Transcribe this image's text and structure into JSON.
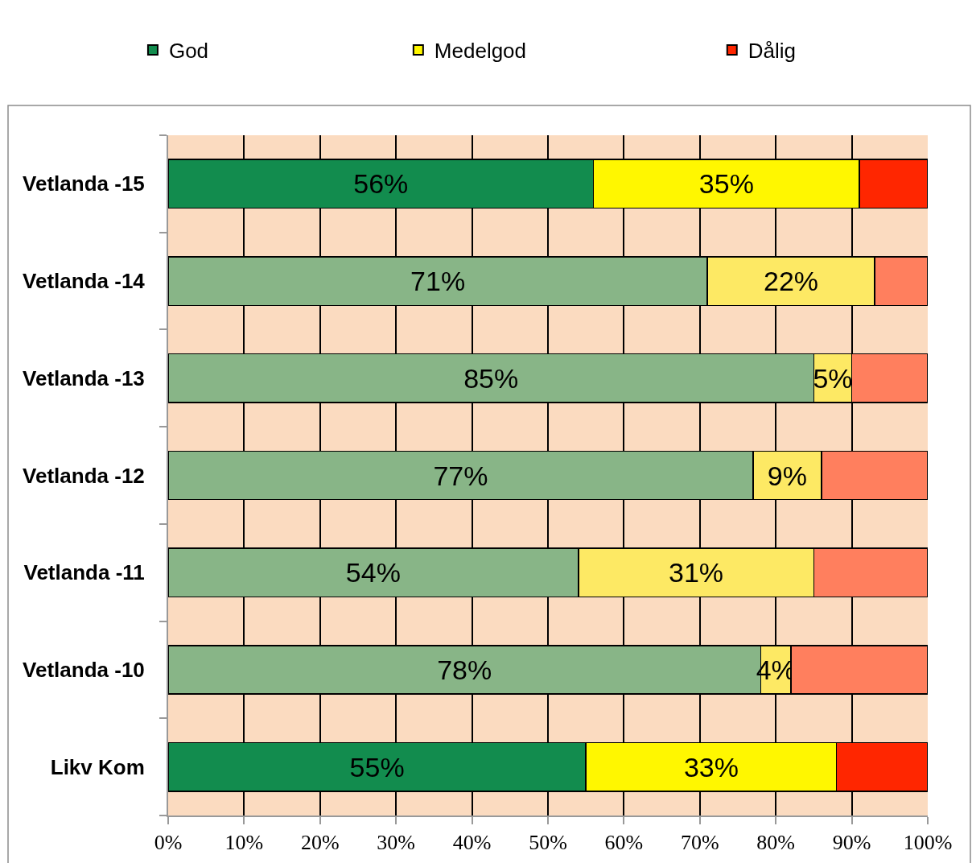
{
  "chart_data": {
    "type": "bar",
    "orientation": "horizontal",
    "stacked": true,
    "categories": [
      "Vetlanda -15",
      "Vetlanda -14",
      "Vetlanda -13",
      "Vetlanda -12",
      "Vetlanda -11",
      "Vetlanda -10",
      "Likv Kom"
    ],
    "series": [
      {
        "name": "God",
        "colors": [
          "#128c4e",
          "#88b587",
          "#88b587",
          "#88b587",
          "#88b587",
          "#88b587",
          "#128c4e"
        ],
        "values": [
          56,
          71,
          85,
          77,
          54,
          78,
          55
        ],
        "value_labels": [
          "56%",
          "71%",
          "85%",
          "77%",
          "54%",
          "78%",
          "55%"
        ]
      },
      {
        "name": "Medelgod",
        "colors": [
          "#fff700",
          "#fde964",
          "#fde964",
          "#fde964",
          "#fde964",
          "#fde964",
          "#fff700"
        ],
        "values": [
          35,
          22,
          5,
          9,
          31,
          4,
          33
        ],
        "value_labels": [
          "35%",
          "22%",
          "5%",
          "9%",
          "31%",
          "4%",
          "33%"
        ]
      },
      {
        "name": "Dålig",
        "colors": [
          "#ff2600",
          "#ff7f5e",
          "#ff7f5e",
          "#ff7f5e",
          "#ff7f5e",
          "#ff7f5e",
          "#ff2600"
        ],
        "values": [
          9,
          7,
          10,
          14,
          15,
          18,
          12
        ]
      }
    ],
    "xlim": [
      0,
      100
    ],
    "xticks": [
      {
        "value": 0,
        "label": "0%"
      },
      {
        "value": 10,
        "label": "10%"
      },
      {
        "value": 20,
        "label": "20%"
      },
      {
        "value": 30,
        "label": "30%"
      },
      {
        "value": 40,
        "label": "40%"
      },
      {
        "value": 50,
        "label": "50%"
      },
      {
        "value": 60,
        "label": "60%"
      },
      {
        "value": 70,
        "label": "70%"
      },
      {
        "value": 80,
        "label": "80%"
      },
      {
        "value": 90,
        "label": "90%"
      },
      {
        "value": 100,
        "label": "100%"
      }
    ],
    "grid": "x",
    "legend": "top"
  }
}
